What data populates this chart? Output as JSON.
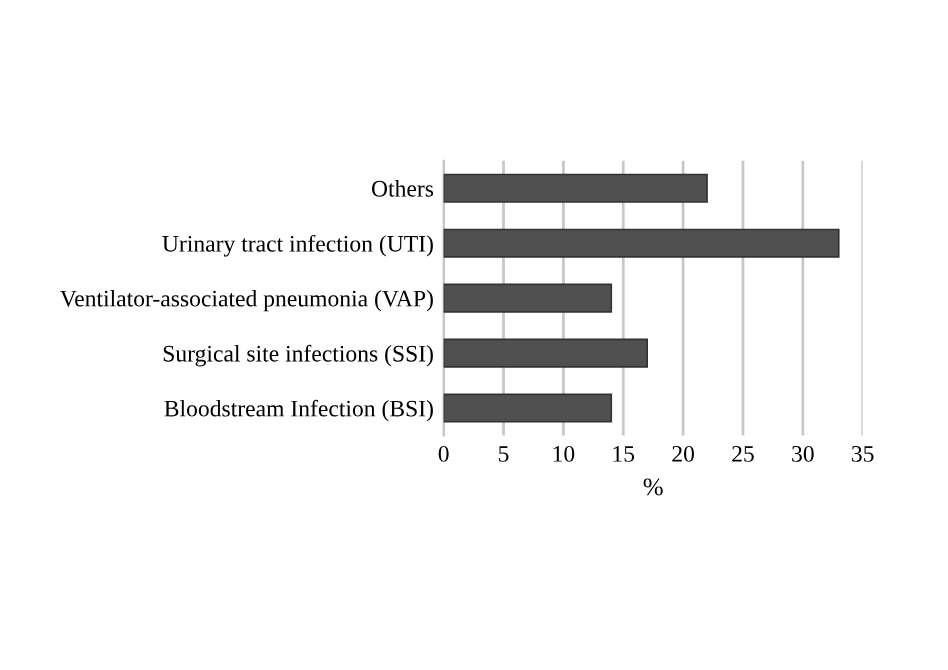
{
  "chart_data": {
    "type": "bar",
    "orientation": "horizontal",
    "xlabel": "%",
    "categories": [
      "Others",
      "Urinary tract infection (UTI)",
      "Ventilator-associated pneumonia (VAP)",
      "Surgical site infections (SSI)",
      "Bloodstream Infection (BSI)"
    ],
    "values": [
      22,
      33,
      14,
      17,
      14
    ],
    "color": "#505050",
    "xlim": [
      0,
      35
    ],
    "xticks": [
      0,
      5,
      10,
      15,
      20,
      25,
      30,
      35
    ],
    "grid": "x"
  }
}
